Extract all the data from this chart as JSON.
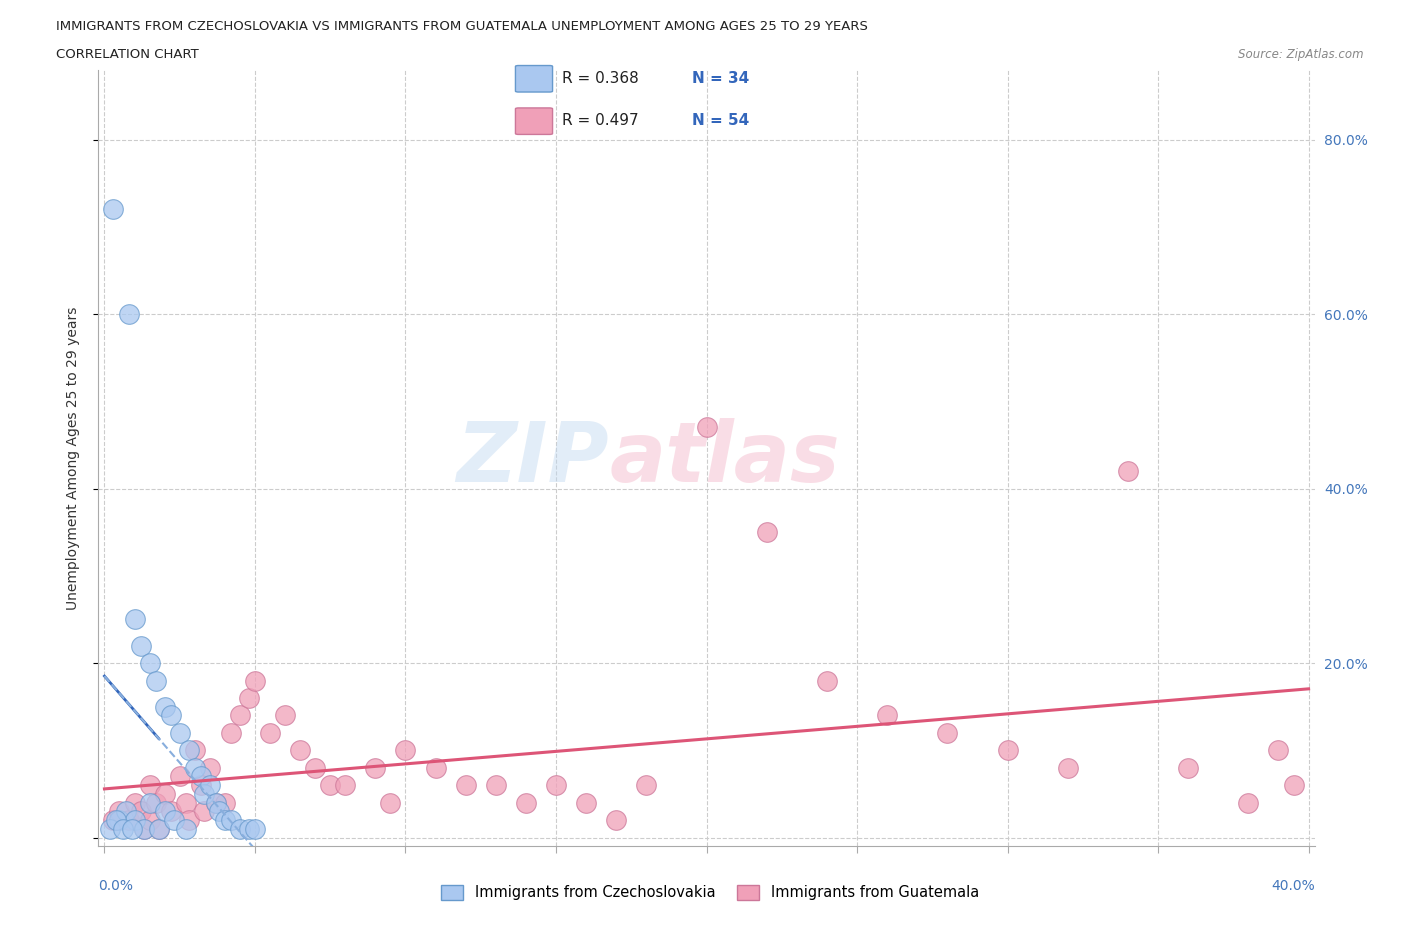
{
  "title_line1": "IMMIGRANTS FROM CZECHOSLOVAKIA VS IMMIGRANTS FROM GUATEMALA UNEMPLOYMENT AMONG AGES 25 TO 29 YEARS",
  "title_line2": "CORRELATION CHART",
  "source": "Source: ZipAtlas.com",
  "ylabel": "Unemployment Among Ages 25 to 29 years",
  "xlim": [
    -0.002,
    0.402
  ],
  "ylim": [
    -0.01,
    0.88
  ],
  "y_tick_positions": [
    0.0,
    0.2,
    0.4,
    0.6,
    0.8
  ],
  "y_tick_labels": [
    "",
    "20.0%",
    "40.0%",
    "60.0%",
    "80.0%"
  ],
  "x_tick_positions": [
    0.0,
    0.05,
    0.1,
    0.15,
    0.2,
    0.25,
    0.3,
    0.35,
    0.4
  ],
  "watermark_zip": "ZIP",
  "watermark_atlas": "atlas",
  "legend_r1": "R = 0.368",
  "legend_n1": "N = 34",
  "legend_r2": "R = 0.497",
  "legend_n2": "N = 54",
  "series1_color": "#aac8f0",
  "series1_edge": "#6699cc",
  "series2_color": "#f0a0b8",
  "series2_edge": "#cc7799",
  "line1_color_solid": "#3366bb",
  "line1_color_dash": "#88aedd",
  "line2_color": "#dd5577",
  "background": "#ffffff",
  "cs_x": [
    0.003,
    0.005,
    0.007,
    0.008,
    0.01,
    0.01,
    0.012,
    0.013,
    0.015,
    0.015,
    0.017,
    0.018,
    0.02,
    0.02,
    0.022,
    0.023,
    0.025,
    0.027,
    0.028,
    0.03,
    0.032,
    0.033,
    0.035,
    0.037,
    0.038,
    0.04,
    0.042,
    0.045,
    0.048,
    0.05,
    0.002,
    0.004,
    0.006,
    0.009
  ],
  "cs_y": [
    0.72,
    0.02,
    0.03,
    0.6,
    0.02,
    0.25,
    0.22,
    0.01,
    0.2,
    0.04,
    0.18,
    0.01,
    0.15,
    0.03,
    0.14,
    0.02,
    0.12,
    0.01,
    0.1,
    0.08,
    0.07,
    0.05,
    0.06,
    0.04,
    0.03,
    0.02,
    0.02,
    0.01,
    0.01,
    0.01,
    0.01,
    0.02,
    0.01,
    0.01
  ],
  "gt_x": [
    0.003,
    0.005,
    0.008,
    0.01,
    0.012,
    0.013,
    0.015,
    0.015,
    0.017,
    0.018,
    0.02,
    0.022,
    0.025,
    0.027,
    0.028,
    0.03,
    0.032,
    0.033,
    0.035,
    0.037,
    0.04,
    0.042,
    0.045,
    0.048,
    0.05,
    0.055,
    0.06,
    0.065,
    0.07,
    0.075,
    0.08,
    0.09,
    0.095,
    0.1,
    0.11,
    0.12,
    0.13,
    0.14,
    0.15,
    0.16,
    0.17,
    0.18,
    0.2,
    0.22,
    0.24,
    0.26,
    0.28,
    0.3,
    0.32,
    0.34,
    0.36,
    0.38,
    0.39,
    0.395
  ],
  "gt_y": [
    0.02,
    0.03,
    0.02,
    0.04,
    0.03,
    0.01,
    0.06,
    0.02,
    0.04,
    0.01,
    0.05,
    0.03,
    0.07,
    0.04,
    0.02,
    0.1,
    0.06,
    0.03,
    0.08,
    0.04,
    0.04,
    0.12,
    0.14,
    0.16,
    0.18,
    0.12,
    0.14,
    0.1,
    0.08,
    0.06,
    0.06,
    0.08,
    0.04,
    0.1,
    0.08,
    0.06,
    0.06,
    0.04,
    0.06,
    0.04,
    0.02,
    0.06,
    0.47,
    0.35,
    0.18,
    0.14,
    0.12,
    0.1,
    0.08,
    0.42,
    0.08,
    0.04,
    0.1,
    0.06
  ]
}
